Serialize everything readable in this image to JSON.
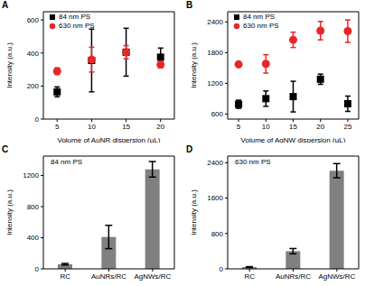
{
  "chart_data": [
    {
      "type": "scatter",
      "title": "A",
      "xlabel": "Volume of AuNR dispersion (μL)",
      "ylabel": "Intensity (a.u.)",
      "x": [
        5,
        10,
        15,
        20
      ],
      "xlim": [
        3,
        22
      ],
      "xticks": [
        5,
        10,
        15,
        20
      ],
      "ylim": [
        0,
        650
      ],
      "yticks": [
        0,
        200,
        400,
        600
      ],
      "legend": "upper left",
      "series": [
        {
          "name": "84 nm PS",
          "color": "#000000",
          "marker": "square",
          "values": [
            165,
            355,
            405,
            375
          ],
          "errors": [
            30,
            190,
            145,
            55
          ]
        },
        {
          "name": "630 nm PS",
          "color": "#e8262a",
          "marker": "circle",
          "values": [
            290,
            360,
            405,
            330
          ],
          "errors": [
            20,
            75,
            40,
            20
          ]
        }
      ]
    },
    {
      "type": "scatter",
      "title": "B",
      "xlabel": "Volume of AgNW dispersion (μL)",
      "ylabel": "Intensity (a.u.)",
      "x": [
        5,
        10,
        15,
        20,
        25
      ],
      "xlim": [
        3,
        27
      ],
      "xticks": [
        5,
        10,
        15,
        20,
        25
      ],
      "ylim": [
        500,
        2600
      ],
      "yticks": [
        600,
        1200,
        1800,
        2400
      ],
      "legend": "upper left",
      "series": [
        {
          "name": "84 nm PS",
          "color": "#000000",
          "marker": "square",
          "values": [
            790,
            900,
            940,
            1280,
            800
          ],
          "errors": [
            80,
            150,
            300,
            100,
            150
          ]
        },
        {
          "name": "630 nm PS",
          "color": "#e8262a",
          "marker": "circle",
          "values": [
            1570,
            1580,
            2050,
            2230,
            2220
          ],
          "errors": [
            30,
            180,
            150,
            180,
            220
          ]
        }
      ]
    },
    {
      "type": "bar",
      "title": "C",
      "subtitle": "84 nm PS",
      "ylabel": "Intensity (a.u.)",
      "categories": [
        "RC",
        "AuNRs/RC",
        "AgNWs/RC"
      ],
      "values": [
        60,
        410,
        1280
      ],
      "errors": [
        10,
        150,
        100
      ],
      "color": "#808080",
      "ylim": [
        0,
        1450
      ],
      "yticks": [
        0,
        400,
        800,
        1200
      ]
    },
    {
      "type": "bar",
      "title": "D",
      "subtitle": "630 nm PS",
      "ylabel": "Intensity (a.u.)",
      "categories": [
        "RC",
        "AuNRs/RC",
        "AgNWs/RC"
      ],
      "values": [
        40,
        400,
        2220
      ],
      "errors": [
        10,
        60,
        160
      ],
      "color": "#808080",
      "ylim": [
        0,
        2550
      ],
      "yticks": [
        0,
        800,
        1600,
        2400
      ]
    }
  ]
}
